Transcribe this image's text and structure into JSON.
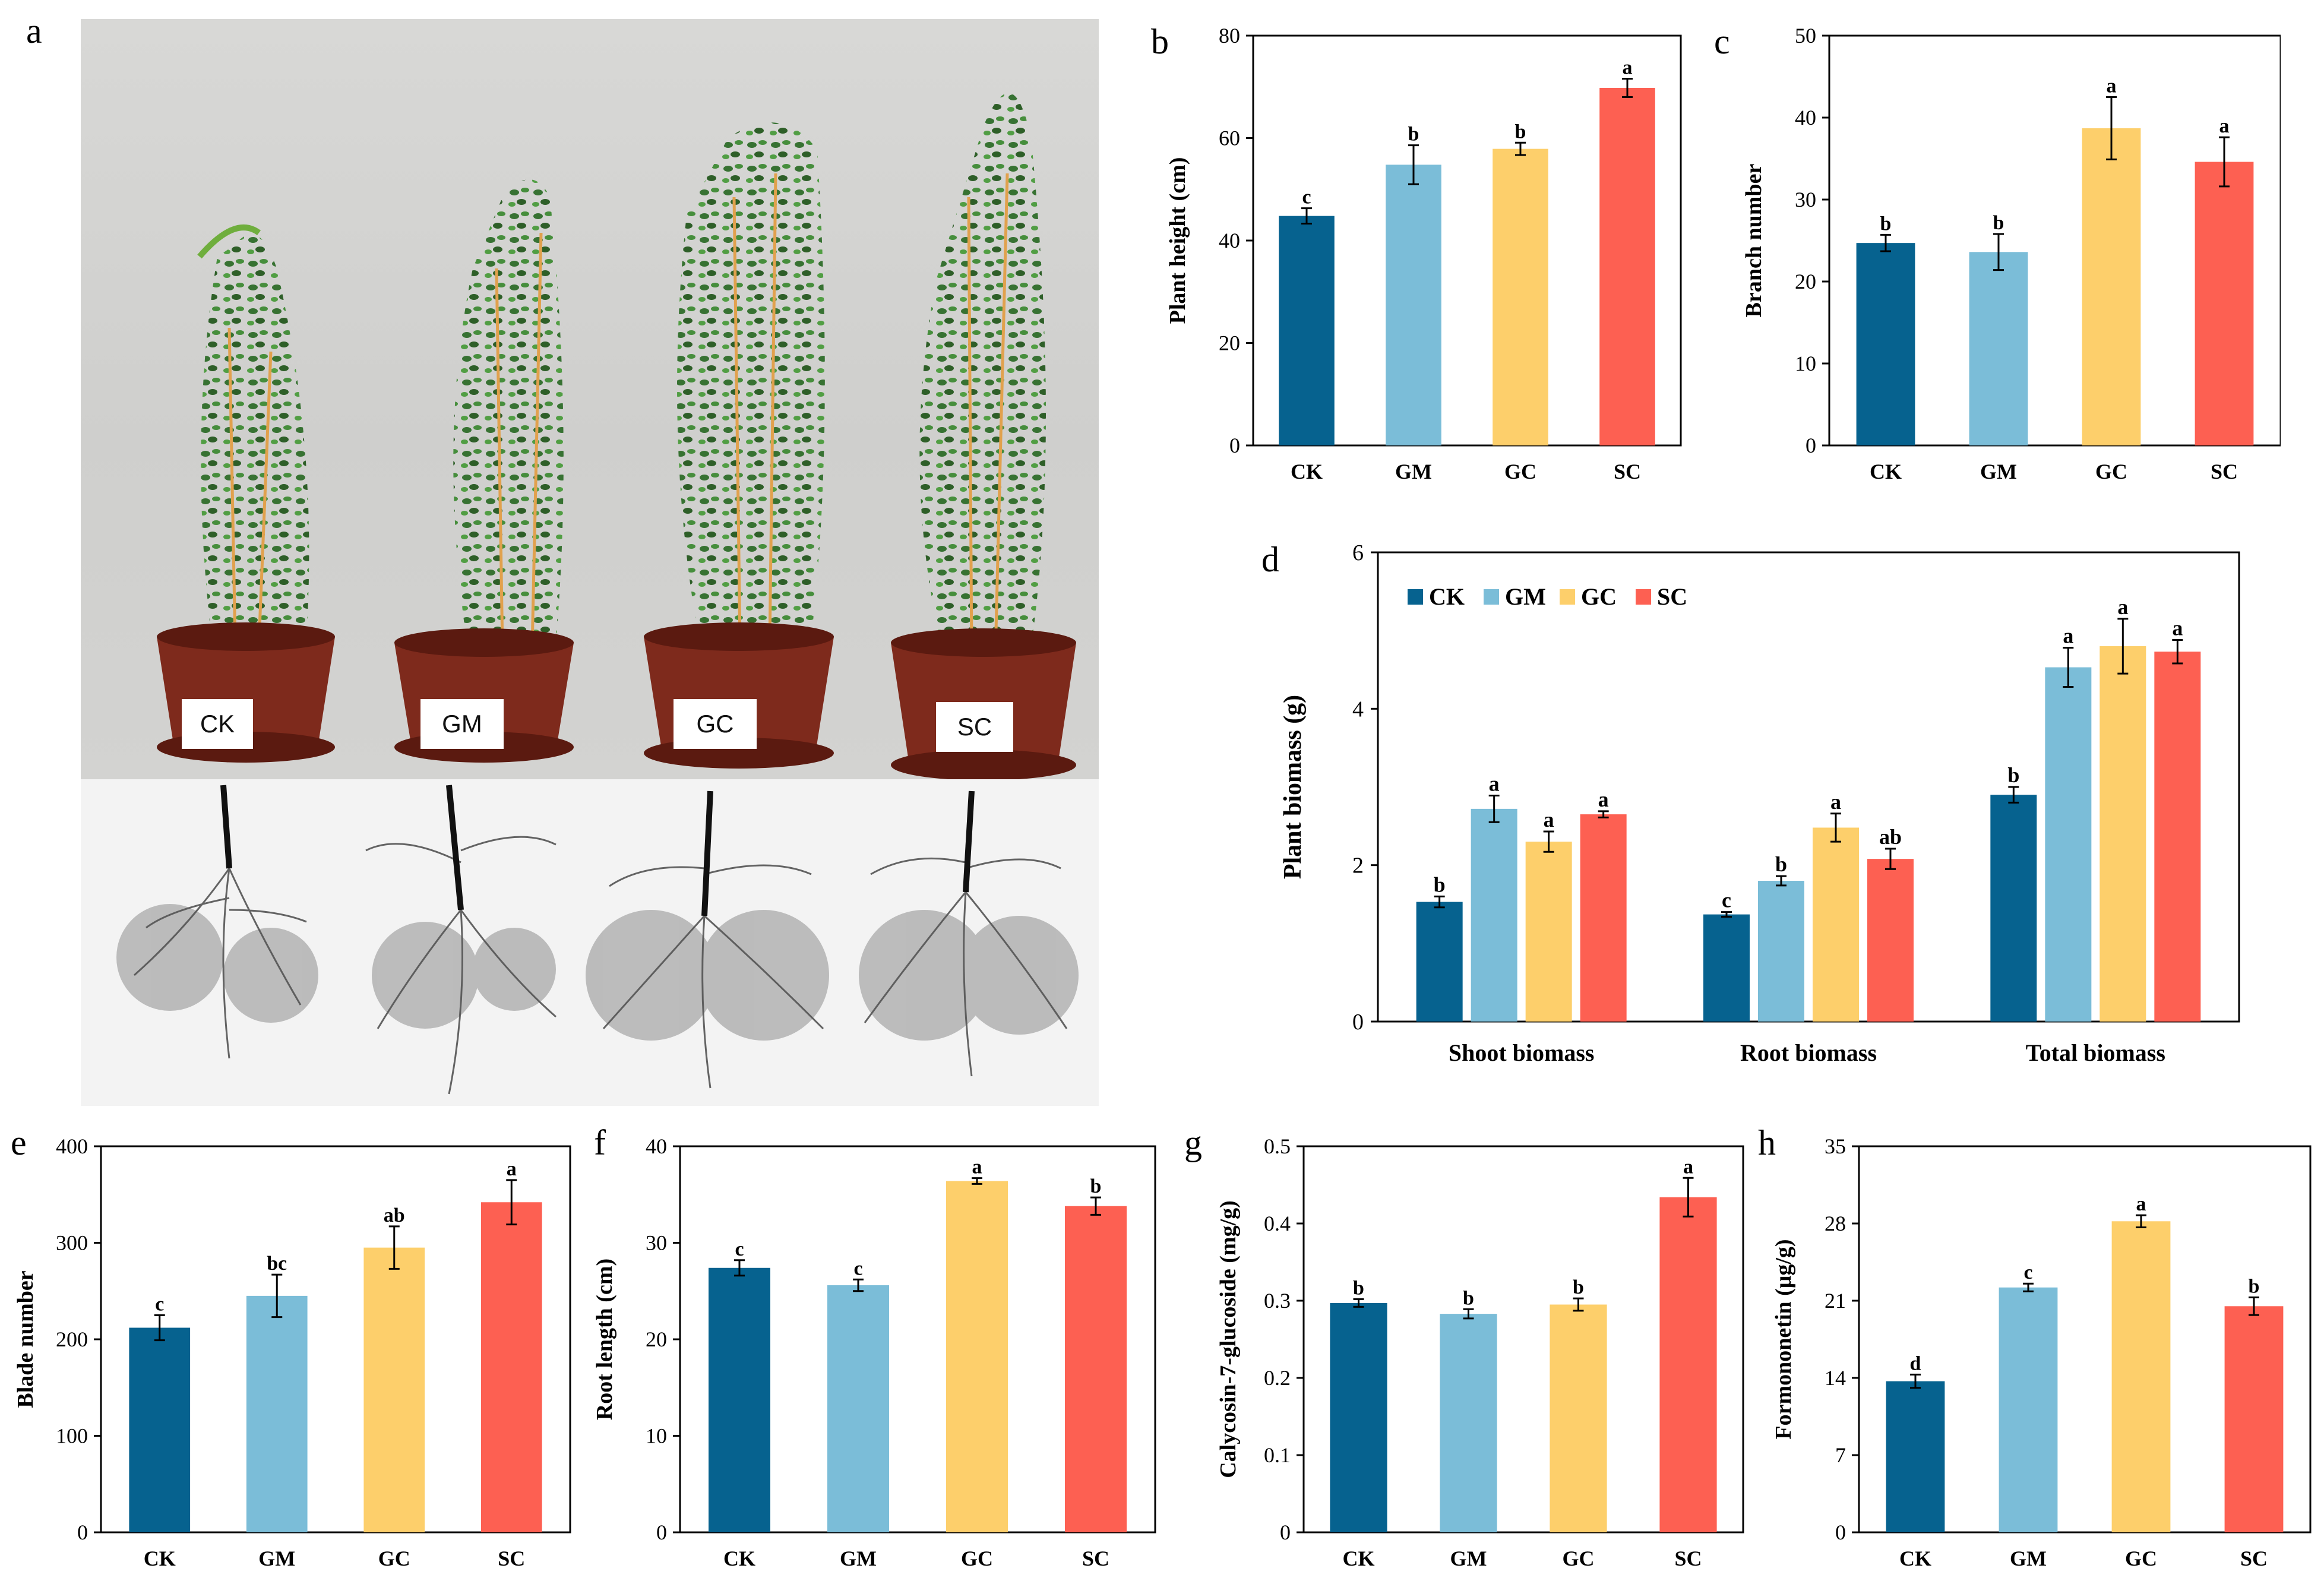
{
  "panels": {
    "a": "a",
    "b": "b",
    "c": "c",
    "d": "d",
    "e": "e",
    "f": "f",
    "g": "g",
    "h": "h"
  },
  "photo": {
    "pot_labels": [
      "CK",
      "GM",
      "GC",
      "SC"
    ]
  },
  "colors": {
    "CK": "#06628f",
    "GM": "#7bbdd8",
    "GC": "#fdcf6b",
    "SC": "#fd6052"
  },
  "chart_data": [
    {
      "id": "b",
      "type": "bar",
      "categories": [
        "CK",
        "GM",
        "GC",
        "SC"
      ],
      "values": [
        44.8,
        54.8,
        57.9,
        69.8
      ],
      "errors": [
        1.5,
        3.8,
        1.2,
        1.8
      ],
      "letters": [
        "c",
        "b",
        "b",
        "a"
      ],
      "ylabel": "Plant  height (cm)",
      "ylim": [
        0,
        80
      ],
      "ticks": [
        0,
        20,
        40,
        60,
        80
      ]
    },
    {
      "id": "c",
      "type": "bar",
      "categories": [
        "CK",
        "GM",
        "GC",
        "SC"
      ],
      "values": [
        24.7,
        23.6,
        38.7,
        34.6
      ],
      "errors": [
        1.0,
        2.2,
        3.8,
        3.0
      ],
      "letters": [
        "b",
        "b",
        "a",
        "a"
      ],
      "ylabel": "Branch number",
      "ylim": [
        0,
        50
      ],
      "ticks": [
        0,
        10,
        20,
        30,
        40,
        50
      ]
    },
    {
      "id": "d",
      "type": "bar",
      "groups": [
        "Shoot biomass",
        "Root biomass",
        "Total biomass"
      ],
      "series": [
        {
          "name": "CK",
          "values": [
            1.53,
            1.37,
            2.9
          ],
          "errors": [
            0.07,
            0.03,
            0.1
          ],
          "letters": [
            "b",
            "c",
            "b"
          ]
        },
        {
          "name": "GM",
          "values": [
            2.72,
            1.8,
            4.53
          ],
          "errors": [
            0.17,
            0.06,
            0.25
          ],
          "letters": [
            "a",
            "b",
            "a"
          ]
        },
        {
          "name": "GC",
          "values": [
            2.3,
            2.48,
            4.8
          ],
          "errors": [
            0.13,
            0.18,
            0.35
          ],
          "letters": [
            "a",
            "a",
            "a"
          ]
        },
        {
          "name": "SC",
          "values": [
            2.65,
            2.08,
            4.73
          ],
          "errors": [
            0.04,
            0.13,
            0.15
          ],
          "letters": [
            "a",
            "ab",
            "a"
          ]
        }
      ],
      "legend": [
        "CK",
        "GM",
        "GC",
        "SC"
      ],
      "ylabel": "Plant biomass  (g)",
      "ylim": [
        0,
        6
      ],
      "ticks": [
        0,
        2,
        4,
        6
      ]
    },
    {
      "id": "e",
      "type": "bar",
      "categories": [
        "CK",
        "GM",
        "GC",
        "SC"
      ],
      "values": [
        212,
        245,
        295,
        342
      ],
      "errors": [
        13,
        22,
        22,
        23
      ],
      "letters": [
        "c",
        "bc",
        "ab",
        "a"
      ],
      "ylabel": "Blade number",
      "ylim": [
        0,
        400
      ],
      "ticks": [
        0,
        100,
        200,
        300,
        400
      ]
    },
    {
      "id": "f",
      "type": "bar",
      "categories": [
        "CK",
        "GM",
        "GC",
        "SC"
      ],
      "values": [
        27.4,
        25.6,
        36.4,
        33.8
      ],
      "errors": [
        0.8,
        0.6,
        0.3,
        0.9
      ],
      "letters": [
        "c",
        "c",
        "a",
        "b"
      ],
      "ylabel": "Root length (cm)",
      "ylim": [
        0,
        40
      ],
      "ticks": [
        0,
        10,
        20,
        30,
        40
      ]
    },
    {
      "id": "g",
      "type": "bar",
      "categories": [
        "CK",
        "GM",
        "GC",
        "SC"
      ],
      "values": [
        0.297,
        0.283,
        0.295,
        0.434
      ],
      "errors": [
        0.005,
        0.006,
        0.008,
        0.025
      ],
      "letters": [
        "b",
        "b",
        "b",
        "a"
      ],
      "ylabel": "Calycosin-7-glucoside  (mg/g)",
      "ylim": [
        0,
        0.5
      ],
      "ticks": [
        "0",
        "0.1",
        "0.2",
        "0.3",
        "0.4",
        "0.5"
      ]
    },
    {
      "id": "h",
      "type": "bar",
      "categories": [
        "CK",
        "GM",
        "GC",
        "SC"
      ],
      "values": [
        13.7,
        22.2,
        28.2,
        20.5
      ],
      "errors": [
        0.6,
        0.35,
        0.55,
        0.8
      ],
      "letters": [
        "d",
        "c",
        "a",
        "b"
      ],
      "ylabel": "Formononetin  (μg/g)",
      "ylim": [
        0,
        35
      ],
      "ticks": [
        0,
        7,
        14,
        21,
        28,
        35
      ]
    }
  ]
}
